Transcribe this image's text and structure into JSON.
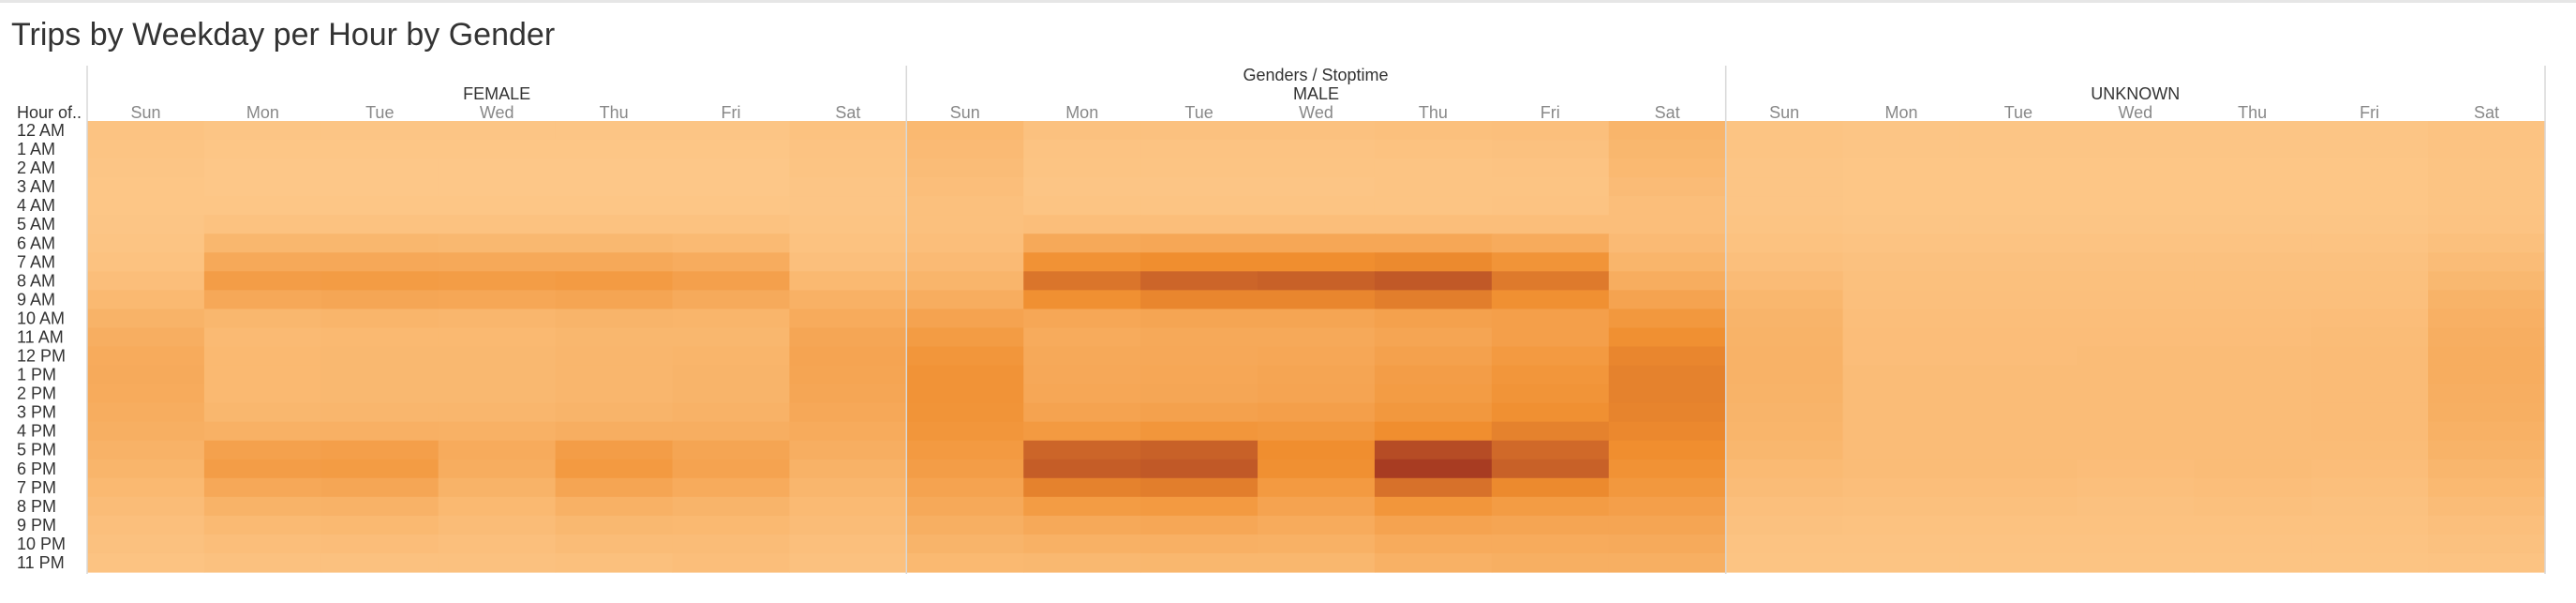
{
  "title": "Trips by Weekday per Hour by Gender",
  "colors": {
    "low": "#fdc889",
    "mid": "#f08e2f",
    "high": "#a83c22",
    "divider": "#d8d8d8",
    "header_text": "#333333",
    "day_text": "#888888"
  },
  "chart_data": {
    "type": "heatmap",
    "title": "Trips by Weekday per Hour by Gender",
    "column_header": "Genders / Stoptime",
    "row_header": "Hour of..",
    "groups": [
      "FEMALE",
      "MALE",
      "UNKNOWN"
    ],
    "days": [
      "Sun",
      "Mon",
      "Tue",
      "Wed",
      "Thu",
      "Fri",
      "Sat"
    ],
    "hours": [
      "12 AM",
      "1 AM",
      "2 AM",
      "3 AM",
      "4 AM",
      "5 AM",
      "6 AM",
      "7 AM",
      "8 AM",
      "9 AM",
      "10 AM",
      "11 AM",
      "12 PM",
      "1 PM",
      "2 PM",
      "3 PM",
      "4 PM",
      "5 PM",
      "6 PM",
      "7 PM",
      "8 PM",
      "9 PM",
      "10 PM",
      "11 PM"
    ],
    "value_scale": "relative intensity 0-1 (no legend shown)",
    "values": {
      "FEMALE": [
        [
          0.05,
          0.03,
          0.03,
          0.03,
          0.03,
          0.03,
          0.06
        ],
        [
          0.04,
          0.02,
          0.02,
          0.02,
          0.02,
          0.02,
          0.05
        ],
        [
          0.03,
          0.01,
          0.01,
          0.01,
          0.01,
          0.01,
          0.04
        ],
        [
          0.02,
          0.01,
          0.01,
          0.01,
          0.01,
          0.01,
          0.03
        ],
        [
          0.02,
          0.02,
          0.02,
          0.02,
          0.02,
          0.02,
          0.03
        ],
        [
          0.03,
          0.06,
          0.06,
          0.06,
          0.06,
          0.06,
          0.04
        ],
        [
          0.04,
          0.18,
          0.18,
          0.17,
          0.17,
          0.15,
          0.06
        ],
        [
          0.06,
          0.32,
          0.33,
          0.32,
          0.32,
          0.29,
          0.09
        ],
        [
          0.1,
          0.44,
          0.46,
          0.45,
          0.47,
          0.41,
          0.16
        ],
        [
          0.16,
          0.33,
          0.35,
          0.34,
          0.36,
          0.31,
          0.24
        ],
        [
          0.22,
          0.18,
          0.2,
          0.19,
          0.21,
          0.2,
          0.3
        ],
        [
          0.27,
          0.15,
          0.16,
          0.16,
          0.18,
          0.18,
          0.35
        ],
        [
          0.3,
          0.16,
          0.17,
          0.17,
          0.19,
          0.2,
          0.37
        ],
        [
          0.31,
          0.16,
          0.17,
          0.17,
          0.19,
          0.21,
          0.36
        ],
        [
          0.3,
          0.16,
          0.17,
          0.17,
          0.19,
          0.21,
          0.35
        ],
        [
          0.28,
          0.18,
          0.19,
          0.19,
          0.21,
          0.23,
          0.33
        ],
        [
          0.26,
          0.24,
          0.25,
          0.24,
          0.27,
          0.27,
          0.3
        ],
        [
          0.23,
          0.4,
          0.42,
          0.3,
          0.44,
          0.36,
          0.27
        ],
        [
          0.2,
          0.44,
          0.46,
          0.28,
          0.48,
          0.38,
          0.23
        ],
        [
          0.16,
          0.33,
          0.35,
          0.22,
          0.36,
          0.3,
          0.19
        ],
        [
          0.12,
          0.22,
          0.23,
          0.16,
          0.24,
          0.21,
          0.15
        ],
        [
          0.09,
          0.15,
          0.16,
          0.12,
          0.17,
          0.16,
          0.12
        ],
        [
          0.07,
          0.1,
          0.11,
          0.09,
          0.12,
          0.12,
          0.09
        ],
        [
          0.05,
          0.07,
          0.07,
          0.07,
          0.08,
          0.1,
          0.07
        ]
      ],
      "MALE": [
        [
          0.16,
          0.07,
          0.07,
          0.07,
          0.08,
          0.09,
          0.2
        ],
        [
          0.14,
          0.05,
          0.05,
          0.05,
          0.06,
          0.07,
          0.18
        ],
        [
          0.12,
          0.04,
          0.04,
          0.04,
          0.04,
          0.05,
          0.16
        ],
        [
          0.1,
          0.03,
          0.03,
          0.03,
          0.04,
          0.04,
          0.13
        ],
        [
          0.08,
          0.04,
          0.04,
          0.04,
          0.04,
          0.05,
          0.1
        ],
        [
          0.08,
          0.1,
          0.1,
          0.1,
          0.1,
          0.1,
          0.1
        ],
        [
          0.1,
          0.32,
          0.34,
          0.34,
          0.34,
          0.3,
          0.14
        ],
        [
          0.14,
          0.56,
          0.6,
          0.6,
          0.62,
          0.54,
          0.2
        ],
        [
          0.2,
          0.72,
          0.8,
          0.82,
          0.86,
          0.7,
          0.28
        ],
        [
          0.28,
          0.58,
          0.64,
          0.64,
          0.68,
          0.58,
          0.38
        ],
        [
          0.38,
          0.34,
          0.36,
          0.36,
          0.4,
          0.42,
          0.5
        ],
        [
          0.46,
          0.3,
          0.32,
          0.32,
          0.36,
          0.42,
          0.58
        ],
        [
          0.52,
          0.32,
          0.33,
          0.34,
          0.4,
          0.48,
          0.64
        ],
        [
          0.55,
          0.33,
          0.34,
          0.36,
          0.44,
          0.52,
          0.66
        ],
        [
          0.55,
          0.34,
          0.35,
          0.37,
          0.46,
          0.54,
          0.66
        ],
        [
          0.54,
          0.38,
          0.4,
          0.42,
          0.5,
          0.58,
          0.65
        ],
        [
          0.52,
          0.48,
          0.52,
          0.5,
          0.6,
          0.66,
          0.63
        ],
        [
          0.48,
          0.8,
          0.82,
          0.6,
          0.92,
          0.78,
          0.6
        ],
        [
          0.44,
          0.84,
          0.86,
          0.58,
          1.0,
          0.82,
          0.56
        ],
        [
          0.38,
          0.66,
          0.68,
          0.48,
          0.74,
          0.62,
          0.5
        ],
        [
          0.32,
          0.46,
          0.48,
          0.38,
          0.52,
          0.46,
          0.42
        ],
        [
          0.26,
          0.32,
          0.34,
          0.3,
          0.38,
          0.36,
          0.36
        ],
        [
          0.21,
          0.24,
          0.25,
          0.24,
          0.3,
          0.3,
          0.31
        ],
        [
          0.16,
          0.17,
          0.18,
          0.18,
          0.24,
          0.26,
          0.26
        ]
      ],
      "UNKNOWN": [
        [
          0.04,
          0.03,
          0.03,
          0.03,
          0.03,
          0.03,
          0.05
        ],
        [
          0.04,
          0.03,
          0.03,
          0.03,
          0.03,
          0.03,
          0.05
        ],
        [
          0.03,
          0.02,
          0.02,
          0.02,
          0.02,
          0.02,
          0.04
        ],
        [
          0.03,
          0.02,
          0.02,
          0.02,
          0.02,
          0.02,
          0.04
        ],
        [
          0.03,
          0.02,
          0.02,
          0.02,
          0.02,
          0.02,
          0.04
        ],
        [
          0.04,
          0.03,
          0.03,
          0.03,
          0.03,
          0.03,
          0.05
        ],
        [
          0.06,
          0.05,
          0.05,
          0.05,
          0.05,
          0.05,
          0.08
        ],
        [
          0.09,
          0.07,
          0.07,
          0.07,
          0.07,
          0.07,
          0.12
        ],
        [
          0.13,
          0.08,
          0.08,
          0.08,
          0.08,
          0.08,
          0.17
        ],
        [
          0.18,
          0.09,
          0.09,
          0.09,
          0.09,
          0.09,
          0.22
        ],
        [
          0.21,
          0.1,
          0.1,
          0.1,
          0.1,
          0.11,
          0.25
        ],
        [
          0.22,
          0.11,
          0.11,
          0.11,
          0.11,
          0.12,
          0.27
        ],
        [
          0.23,
          0.11,
          0.11,
          0.12,
          0.12,
          0.13,
          0.28
        ],
        [
          0.23,
          0.12,
          0.12,
          0.12,
          0.12,
          0.13,
          0.28
        ],
        [
          0.22,
          0.12,
          0.12,
          0.12,
          0.12,
          0.13,
          0.27
        ],
        [
          0.21,
          0.12,
          0.12,
          0.12,
          0.12,
          0.13,
          0.26
        ],
        [
          0.2,
          0.12,
          0.12,
          0.12,
          0.12,
          0.13,
          0.24
        ],
        [
          0.18,
          0.12,
          0.12,
          0.12,
          0.12,
          0.12,
          0.22
        ],
        [
          0.15,
          0.12,
          0.12,
          0.11,
          0.12,
          0.11,
          0.19
        ],
        [
          0.12,
          0.1,
          0.1,
          0.09,
          0.1,
          0.09,
          0.16
        ],
        [
          0.09,
          0.08,
          0.08,
          0.07,
          0.08,
          0.07,
          0.12
        ],
        [
          0.07,
          0.06,
          0.06,
          0.06,
          0.06,
          0.06,
          0.09
        ],
        [
          0.05,
          0.05,
          0.05,
          0.05,
          0.05,
          0.05,
          0.07
        ],
        [
          0.04,
          0.04,
          0.04,
          0.04,
          0.04,
          0.04,
          0.05
        ]
      ]
    }
  }
}
